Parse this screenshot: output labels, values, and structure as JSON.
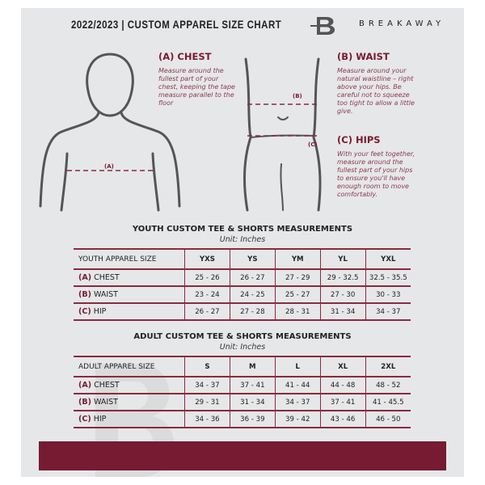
{
  "header": {
    "title": "2022/2023  |  CUSTOM APPAREL SIZE CHART",
    "brand": "BREAKAWAY",
    "brand_logo_letter": "B"
  },
  "guide": {
    "chest": {
      "title": "(A) CHEST",
      "text": "Measure around the fullest part of your chest, keeping the tape measure parallel to the floor",
      "marker": "(A)"
    },
    "waist": {
      "title": "(B) WAIST",
      "text": "Measure around your natural waistline – right above your hips. Be careful not to squeeze too tight to allow a little give.",
      "marker": "(B)"
    },
    "hips": {
      "title": "(C) HIPS",
      "text": "With your feet together, measure around the fullest part of your hips to ensure you'll have enough room to move comfortably.",
      "marker": "(C)"
    }
  },
  "youth": {
    "title": "YOUTH CUSTOM TEE & SHORTS MEASUREMENTS",
    "unit": "Unit: Inches",
    "header": "YOUTH APPAREL SIZE",
    "sizes": [
      "YXS",
      "YS",
      "YM",
      "YL",
      "YXL"
    ],
    "rows": [
      {
        "key": "(A)",
        "label": "CHEST",
        "values": [
          "25 - 26",
          "26 - 27",
          "27 - 29",
          "29 - 32.5",
          "32.5 - 35.5"
        ]
      },
      {
        "key": "(B)",
        "label": "WAIST",
        "values": [
          "23 - 24",
          "24 - 25",
          "25 - 27",
          "27 - 30",
          "30 - 33"
        ]
      },
      {
        "key": "(C)",
        "label": "HIP",
        "values": [
          "26 - 27",
          "27 - 28",
          "28 - 31",
          "31 - 34",
          "34 - 37"
        ]
      }
    ]
  },
  "adult": {
    "title": "ADULT CUSTOM TEE & SHORTS MEASUREMENTS",
    "unit": "Unit: Inches",
    "header": "ADULT APPAREL SIZE",
    "sizes": [
      "S",
      "M",
      "L",
      "XL",
      "2XL"
    ],
    "rows": [
      {
        "key": "(A)",
        "label": "CHEST",
        "values": [
          "34 - 37",
          "37 - 41",
          "41 - 44",
          "44 - 48",
          "48 - 52"
        ]
      },
      {
        "key": "(B)",
        "label": "WAIST",
        "values": [
          "29 - 31",
          "31 - 34",
          "34 - 37",
          "37 - 41",
          "41 - 45.5"
        ]
      },
      {
        "key": "(C)",
        "label": "HIP",
        "values": [
          "34 - 36",
          "36 - 39",
          "39 - 42",
          "43 - 46",
          "46 - 50"
        ]
      }
    ]
  },
  "colors": {
    "accent": "#761b31",
    "panel": "#e6e7e9"
  }
}
